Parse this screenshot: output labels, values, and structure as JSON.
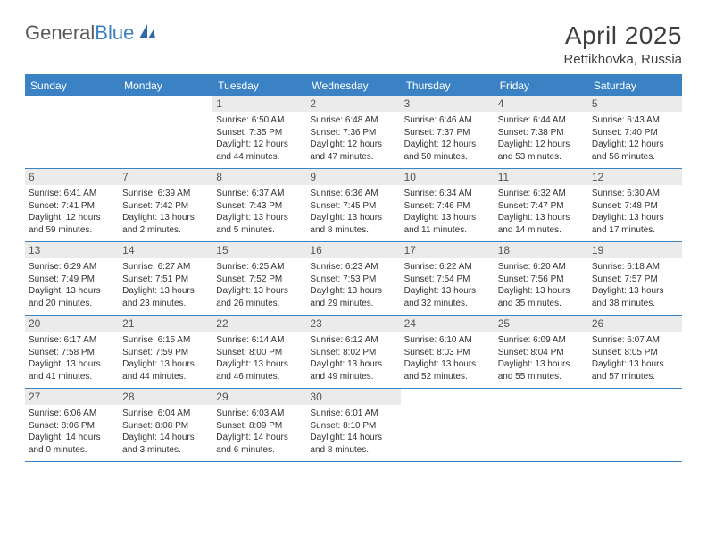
{
  "brand": {
    "name1": "General",
    "name2": "Blue",
    "color1": "#5a5a5a",
    "color2": "#3a7fc2",
    "icon_color": "#2f6aa8"
  },
  "header": {
    "month_title": "April 2025",
    "location": "Rettikhovka, Russia"
  },
  "colors": {
    "header_bar": "#3b82c4",
    "header_text": "#ffffff",
    "daynum_bg": "#ebebeb",
    "daynum_text": "#555555",
    "body_text": "#333333",
    "page_bg": "#ffffff",
    "row_border": "#3b82c4"
  },
  "weekdays": [
    "Sunday",
    "Monday",
    "Tuesday",
    "Wednesday",
    "Thursday",
    "Friday",
    "Saturday"
  ],
  "weeks": [
    [
      null,
      null,
      {
        "num": "1",
        "sunrise": "6:50 AM",
        "sunset": "7:35 PM",
        "daylight": "12 hours and 44 minutes."
      },
      {
        "num": "2",
        "sunrise": "6:48 AM",
        "sunset": "7:36 PM",
        "daylight": "12 hours and 47 minutes."
      },
      {
        "num": "3",
        "sunrise": "6:46 AM",
        "sunset": "7:37 PM",
        "daylight": "12 hours and 50 minutes."
      },
      {
        "num": "4",
        "sunrise": "6:44 AM",
        "sunset": "7:38 PM",
        "daylight": "12 hours and 53 minutes."
      },
      {
        "num": "5",
        "sunrise": "6:43 AM",
        "sunset": "7:40 PM",
        "daylight": "12 hours and 56 minutes."
      }
    ],
    [
      {
        "num": "6",
        "sunrise": "6:41 AM",
        "sunset": "7:41 PM",
        "daylight": "12 hours and 59 minutes."
      },
      {
        "num": "7",
        "sunrise": "6:39 AM",
        "sunset": "7:42 PM",
        "daylight": "13 hours and 2 minutes."
      },
      {
        "num": "8",
        "sunrise": "6:37 AM",
        "sunset": "7:43 PM",
        "daylight": "13 hours and 5 minutes."
      },
      {
        "num": "9",
        "sunrise": "6:36 AM",
        "sunset": "7:45 PM",
        "daylight": "13 hours and 8 minutes."
      },
      {
        "num": "10",
        "sunrise": "6:34 AM",
        "sunset": "7:46 PM",
        "daylight": "13 hours and 11 minutes."
      },
      {
        "num": "11",
        "sunrise": "6:32 AM",
        "sunset": "7:47 PM",
        "daylight": "13 hours and 14 minutes."
      },
      {
        "num": "12",
        "sunrise": "6:30 AM",
        "sunset": "7:48 PM",
        "daylight": "13 hours and 17 minutes."
      }
    ],
    [
      {
        "num": "13",
        "sunrise": "6:29 AM",
        "sunset": "7:49 PM",
        "daylight": "13 hours and 20 minutes."
      },
      {
        "num": "14",
        "sunrise": "6:27 AM",
        "sunset": "7:51 PM",
        "daylight": "13 hours and 23 minutes."
      },
      {
        "num": "15",
        "sunrise": "6:25 AM",
        "sunset": "7:52 PM",
        "daylight": "13 hours and 26 minutes."
      },
      {
        "num": "16",
        "sunrise": "6:23 AM",
        "sunset": "7:53 PM",
        "daylight": "13 hours and 29 minutes."
      },
      {
        "num": "17",
        "sunrise": "6:22 AM",
        "sunset": "7:54 PM",
        "daylight": "13 hours and 32 minutes."
      },
      {
        "num": "18",
        "sunrise": "6:20 AM",
        "sunset": "7:56 PM",
        "daylight": "13 hours and 35 minutes."
      },
      {
        "num": "19",
        "sunrise": "6:18 AM",
        "sunset": "7:57 PM",
        "daylight": "13 hours and 38 minutes."
      }
    ],
    [
      {
        "num": "20",
        "sunrise": "6:17 AM",
        "sunset": "7:58 PM",
        "daylight": "13 hours and 41 minutes."
      },
      {
        "num": "21",
        "sunrise": "6:15 AM",
        "sunset": "7:59 PM",
        "daylight": "13 hours and 44 minutes."
      },
      {
        "num": "22",
        "sunrise": "6:14 AM",
        "sunset": "8:00 PM",
        "daylight": "13 hours and 46 minutes."
      },
      {
        "num": "23",
        "sunrise": "6:12 AM",
        "sunset": "8:02 PM",
        "daylight": "13 hours and 49 minutes."
      },
      {
        "num": "24",
        "sunrise": "6:10 AM",
        "sunset": "8:03 PM",
        "daylight": "13 hours and 52 minutes."
      },
      {
        "num": "25",
        "sunrise": "6:09 AM",
        "sunset": "8:04 PM",
        "daylight": "13 hours and 55 minutes."
      },
      {
        "num": "26",
        "sunrise": "6:07 AM",
        "sunset": "8:05 PM",
        "daylight": "13 hours and 57 minutes."
      }
    ],
    [
      {
        "num": "27",
        "sunrise": "6:06 AM",
        "sunset": "8:06 PM",
        "daylight": "14 hours and 0 minutes."
      },
      {
        "num": "28",
        "sunrise": "6:04 AM",
        "sunset": "8:08 PM",
        "daylight": "14 hours and 3 minutes."
      },
      {
        "num": "29",
        "sunrise": "6:03 AM",
        "sunset": "8:09 PM",
        "daylight": "14 hours and 6 minutes."
      },
      {
        "num": "30",
        "sunrise": "6:01 AM",
        "sunset": "8:10 PM",
        "daylight": "14 hours and 8 minutes."
      },
      null,
      null,
      null
    ]
  ],
  "labels": {
    "sunrise": "Sunrise:",
    "sunset": "Sunset:",
    "daylight": "Daylight:"
  }
}
